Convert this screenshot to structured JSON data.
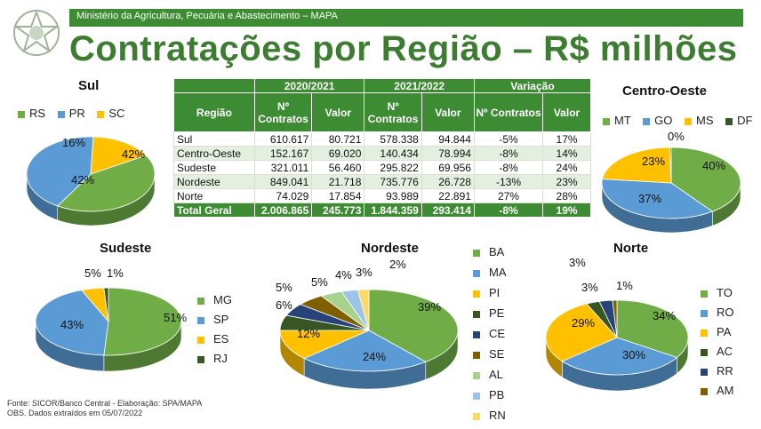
{
  "header": {
    "ministry": "Ministério da Agricultura, Pecuária e Abastecimento – MAPA",
    "title": "Contratações por Região – R$ milhões"
  },
  "colors": {
    "brand": "#3d8b33",
    "title": "#3d7d32",
    "negative": "#cc0000"
  },
  "table": {
    "year_headers": [
      "2020/2021",
      "2021/2022",
      "Variação"
    ],
    "col_headers": [
      "Região",
      "Nº Contratos",
      "Valor",
      "Nº Contratos",
      "Valor",
      "Nº Contratos",
      "Valor"
    ],
    "rows": [
      [
        "Sul",
        "610.617",
        "80.721",
        "578.338",
        "94.844",
        "-5%",
        "17%"
      ],
      [
        "Centro-Oeste",
        "152.167",
        "69.020",
        "140.434",
        "78.994",
        "-8%",
        "14%"
      ],
      [
        "Sudeste",
        "321.011",
        "56.460",
        "295.822",
        "69.956",
        "-8%",
        "24%"
      ],
      [
        "Nordeste",
        "849.041",
        "21.718",
        "735.776",
        "26.728",
        "-13%",
        "23%"
      ],
      [
        "Norte",
        "74.029",
        "17.854",
        "93.989",
        "22.891",
        "27%",
        "28%"
      ]
    ],
    "total": [
      "Total Geral",
      "2.006.865",
      "245.773",
      "1.844.359",
      "293.414",
      "-8%",
      "19%"
    ]
  },
  "chart_data": [
    {
      "type": "pie",
      "title": "Sul",
      "series": [
        {
          "name": "RS",
          "value": 42,
          "label": "42%",
          "color": "#70ad47"
        },
        {
          "name": "PR",
          "value": 42,
          "label": "42%",
          "color": "#5b9bd5"
        },
        {
          "name": "SC",
          "value": 16,
          "label": "16%",
          "color": "#ffc000"
        }
      ]
    },
    {
      "type": "pie",
      "title": "Centro-Oeste",
      "series": [
        {
          "name": "MT",
          "value": 40,
          "label": "40%",
          "color": "#70ad47"
        },
        {
          "name": "GO",
          "value": 37,
          "label": "37%",
          "color": "#5b9bd5"
        },
        {
          "name": "MS",
          "value": 23,
          "label": "23%",
          "color": "#ffc000"
        },
        {
          "name": "DF",
          "value": 0.3,
          "label": "0%",
          "color": "#375623"
        }
      ]
    },
    {
      "type": "pie",
      "title": "Sudeste",
      "series": [
        {
          "name": "MG",
          "value": 51,
          "label": "51%",
          "color": "#70ad47"
        },
        {
          "name": "SP",
          "value": 43,
          "label": "43%",
          "color": "#5b9bd5"
        },
        {
          "name": "ES",
          "value": 5,
          "label": "5%",
          "color": "#ffc000"
        },
        {
          "name": "RJ",
          "value": 1,
          "label": "1%",
          "color": "#375623"
        }
      ]
    },
    {
      "type": "pie",
      "title": "Nordeste",
      "series": [
        {
          "name": "BA",
          "value": 39,
          "label": "39%",
          "color": "#70ad47"
        },
        {
          "name": "MA",
          "value": 24,
          "label": "24%",
          "color": "#5b9bd5"
        },
        {
          "name": "PI",
          "value": 12,
          "label": "12%",
          "color": "#ffc000"
        },
        {
          "name": "PE",
          "value": 6,
          "label": "6%",
          "color": "#375623"
        },
        {
          "name": "CE",
          "value": 5,
          "label": "5%",
          "color": "#264478"
        },
        {
          "name": "SE",
          "value": 5,
          "label": "5%",
          "color": "#7f6000"
        },
        {
          "name": "AL",
          "value": 4,
          "label": "4%",
          "color": "#a9d18e"
        },
        {
          "name": "PB",
          "value": 3,
          "label": "3%",
          "color": "#9dc3e6"
        },
        {
          "name": "RN",
          "value": 2,
          "label": "2%",
          "color": "#ffd966"
        }
      ]
    },
    {
      "type": "pie",
      "title": "Norte",
      "series": [
        {
          "name": "TO",
          "value": 34,
          "label": "34%",
          "color": "#70ad47"
        },
        {
          "name": "RO",
          "value": 30,
          "label": "30%",
          "color": "#5b9bd5"
        },
        {
          "name": "PA",
          "value": 29,
          "label": "29%",
          "color": "#ffc000"
        },
        {
          "name": "AC",
          "value": 3,
          "label": "3%",
          "color": "#375623"
        },
        {
          "name": "RR",
          "value": 3,
          "label": "3%",
          "color": "#264478"
        },
        {
          "name": "AM",
          "value": 1,
          "label": "1%",
          "color": "#7f6000"
        }
      ]
    }
  ],
  "footer": {
    "source": "Fonte: SICOR/Banco Central - Elaboração: SPA/MAPA",
    "obs": "OBS. Dados extraídos em 05/07/2022"
  }
}
